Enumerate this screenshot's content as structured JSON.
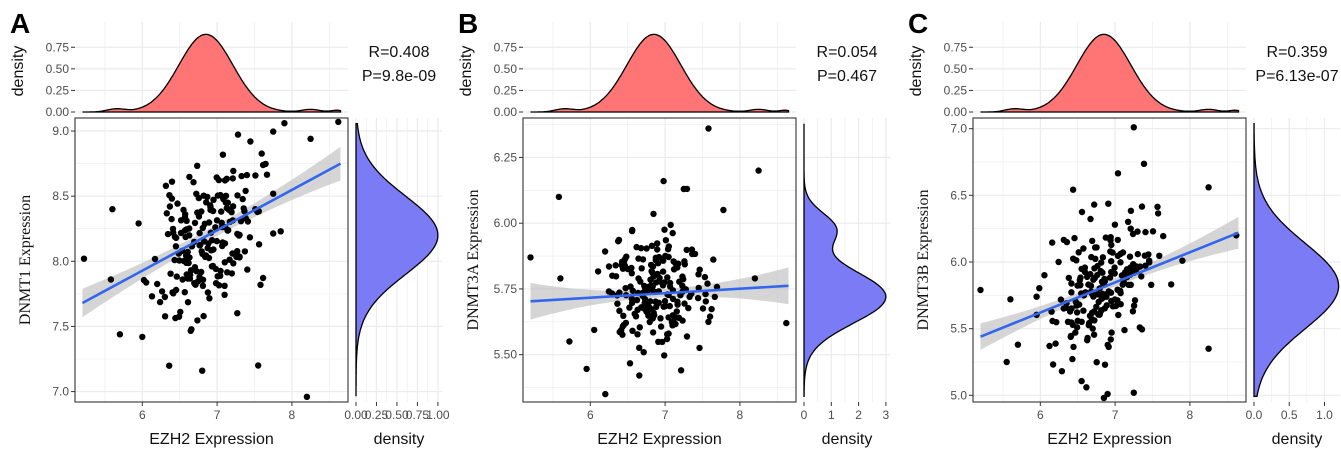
{
  "style": {
    "grid_color": "#ebebeb",
    "top_density_fill": "#ff7474",
    "right_density_fill": "#7b7bf5",
    "fit_line_color": "#3366ee",
    "ci_band_color": "#bfbfbf",
    "point_color": "#000000"
  },
  "chart_data": [
    {
      "panel_label": "A",
      "type": "scatter",
      "stats": {
        "r_text": "R=0.408",
        "p_text": "P=9.8e-09"
      },
      "xlabel": "EZH2 Expression",
      "ylabel": "DNMT1 Expression",
      "xlim": [
        5.1,
        8.75
      ],
      "ylim": [
        6.92,
        9.1
      ],
      "x_ticks": [
        6,
        7,
        8
      ],
      "y_ticks": [
        7.0,
        7.5,
        8.0,
        8.5,
        9.0
      ],
      "y_tick_labels": [
        "7.0",
        "7.5",
        "8.0",
        "8.5",
        "9.0"
      ],
      "fit": {
        "x": [
          5.2,
          8.65
        ],
        "y": [
          7.68,
          8.75
        ],
        "ci_half_width": [
          0.11,
          0.042,
          0.13
        ]
      },
      "seed": 11,
      "n_points": 200,
      "point_distribution": {
        "x_mean": 6.85,
        "x_sd": 0.35,
        "y_mean": 8.15,
        "y_sd": 0.3,
        "corr": 0.41
      },
      "outliers": [
        [
          5.22,
          8.02
        ],
        [
          5.6,
          8.4
        ],
        [
          5.58,
          7.86
        ],
        [
          5.7,
          7.44
        ],
        [
          6.0,
          7.42
        ],
        [
          7.55,
          7.2
        ],
        [
          8.2,
          6.96
        ],
        [
          7.9,
          9.06
        ],
        [
          8.62,
          9.07
        ],
        [
          8.25,
          8.94
        ],
        [
          6.8,
          7.16
        ],
        [
          7.85,
          8.23
        ],
        [
          7.58,
          7.82
        ]
      ],
      "top_density": {
        "title": "density",
        "y_ticks": [
          0.0,
          0.25,
          0.5,
          0.75
        ],
        "y_tick_labels": [
          "0.00",
          "0.25",
          "0.50",
          "0.75"
        ],
        "ylim": [
          0,
          0.95
        ],
        "peak": 0.9,
        "center": 6.85,
        "sd": 0.36
      },
      "right_density": {
        "xlabel": "density",
        "x_ticks": [
          0,
          0.25,
          0.5,
          0.75,
          1.0
        ],
        "x_tick_labels": [
          "0.00",
          "0.25",
          "0.50",
          "0.75",
          "1.00"
        ],
        "xlim": [
          0,
          1.05
        ],
        "peak": 1.0,
        "center": 8.2,
        "sd": 0.3
      }
    },
    {
      "panel_label": "B",
      "type": "scatter",
      "stats": {
        "r_text": "R=0.054",
        "p_text": "P=0.467"
      },
      "xlabel": "EZH2 Expression",
      "ylabel": "DNMT3A Expression",
      "xlim": [
        5.1,
        8.75
      ],
      "ylim": [
        5.32,
        6.4
      ],
      "x_ticks": [
        6,
        7,
        8
      ],
      "y_ticks": [
        5.5,
        5.75,
        6.0,
        6.25
      ],
      "y_tick_labels": [
        "5.50",
        "5.75",
        "6.00",
        "6.25"
      ],
      "fit": {
        "x": [
          5.2,
          8.65
        ],
        "y": [
          5.703,
          5.762
        ],
        "ci_half_width": [
          0.07,
          0.015,
          0.07
        ]
      },
      "seed": 23,
      "n_points": 200,
      "point_distribution": {
        "x_mean": 6.85,
        "x_sd": 0.35,
        "y_mean": 5.73,
        "y_sd": 0.12,
        "corr": 0.05
      },
      "outliers": [
        [
          5.2,
          5.87
        ],
        [
          5.58,
          6.1
        ],
        [
          5.6,
          5.79
        ],
        [
          5.72,
          5.55
        ],
        [
          6.2,
          5.35
        ],
        [
          7.58,
          6.36
        ],
        [
          8.25,
          6.2
        ],
        [
          7.78,
          6.05
        ],
        [
          8.2,
          5.79
        ],
        [
          8.62,
          5.62
        ],
        [
          7.25,
          6.13
        ],
        [
          6.98,
          6.16
        ]
      ],
      "top_density": {
        "title": "density",
        "y_ticks": [
          0.0,
          0.25,
          0.5,
          0.75
        ],
        "y_tick_labels": [
          "0.00",
          "0.25",
          "0.50",
          "0.75"
        ],
        "ylim": [
          0,
          0.95
        ],
        "peak": 0.9,
        "center": 6.85,
        "sd": 0.36
      },
      "right_density": {
        "xlabel": "density",
        "x_ticks": [
          0,
          1,
          2,
          3
        ],
        "x_tick_labels": [
          "0",
          "1",
          "2",
          "3"
        ],
        "xlim": [
          0,
          3.15
        ],
        "peak": 3.0,
        "center": 5.72,
        "sd": 0.1
      }
    },
    {
      "panel_label": "C",
      "type": "scatter",
      "stats": {
        "r_text": "R=0.359",
        "p_text": "P=6.13e-07"
      },
      "xlabel": "EZH2 Expression",
      "ylabel": "DNMT3B Expression",
      "xlim": [
        5.1,
        8.75
      ],
      "ylim": [
        4.95,
        7.08
      ],
      "x_ticks": [
        6,
        7,
        8
      ],
      "y_ticks": [
        5.0,
        5.5,
        6.0,
        6.5,
        7.0
      ],
      "y_tick_labels": [
        "5.0",
        "5.5",
        "6.0",
        "6.5",
        "7.0"
      ],
      "fit": {
        "x": [
          5.2,
          8.65
        ],
        "y": [
          5.44,
          6.22
        ],
        "ci_half_width": [
          0.1,
          0.03,
          0.12
        ]
      },
      "seed": 37,
      "n_points": 200,
      "point_distribution": {
        "x_mean": 6.85,
        "x_sd": 0.35,
        "y_mean": 5.85,
        "y_sd": 0.28,
        "corr": 0.36
      },
      "outliers": [
        [
          5.2,
          5.79
        ],
        [
          5.6,
          5.72
        ],
        [
          5.55,
          5.25
        ],
        [
          5.7,
          5.38
        ],
        [
          7.25,
          7.01
        ],
        [
          7.25,
          5.02
        ],
        [
          6.9,
          5.01
        ],
        [
          8.25,
          6.56
        ],
        [
          8.25,
          5.35
        ],
        [
          8.62,
          6.2
        ],
        [
          7.9,
          6.01
        ],
        [
          6.85,
          4.98
        ]
      ],
      "top_density": {
        "title": "density",
        "y_ticks": [
          0.0,
          0.25,
          0.5,
          0.75
        ],
        "y_tick_labels": [
          "0.00",
          "0.25",
          "0.50",
          "0.75"
        ],
        "ylim": [
          0,
          0.95
        ],
        "peak": 0.9,
        "center": 6.85,
        "sd": 0.36
      },
      "right_density": {
        "xlabel": "density",
        "x_ticks": [
          0,
          0.5,
          1.0
        ],
        "x_tick_labels": [
          "0.0",
          "0.5",
          "1.0"
        ],
        "xlim": [
          0,
          1.22
        ],
        "peak": 1.2,
        "center": 5.82,
        "sd": 0.32
      }
    }
  ]
}
